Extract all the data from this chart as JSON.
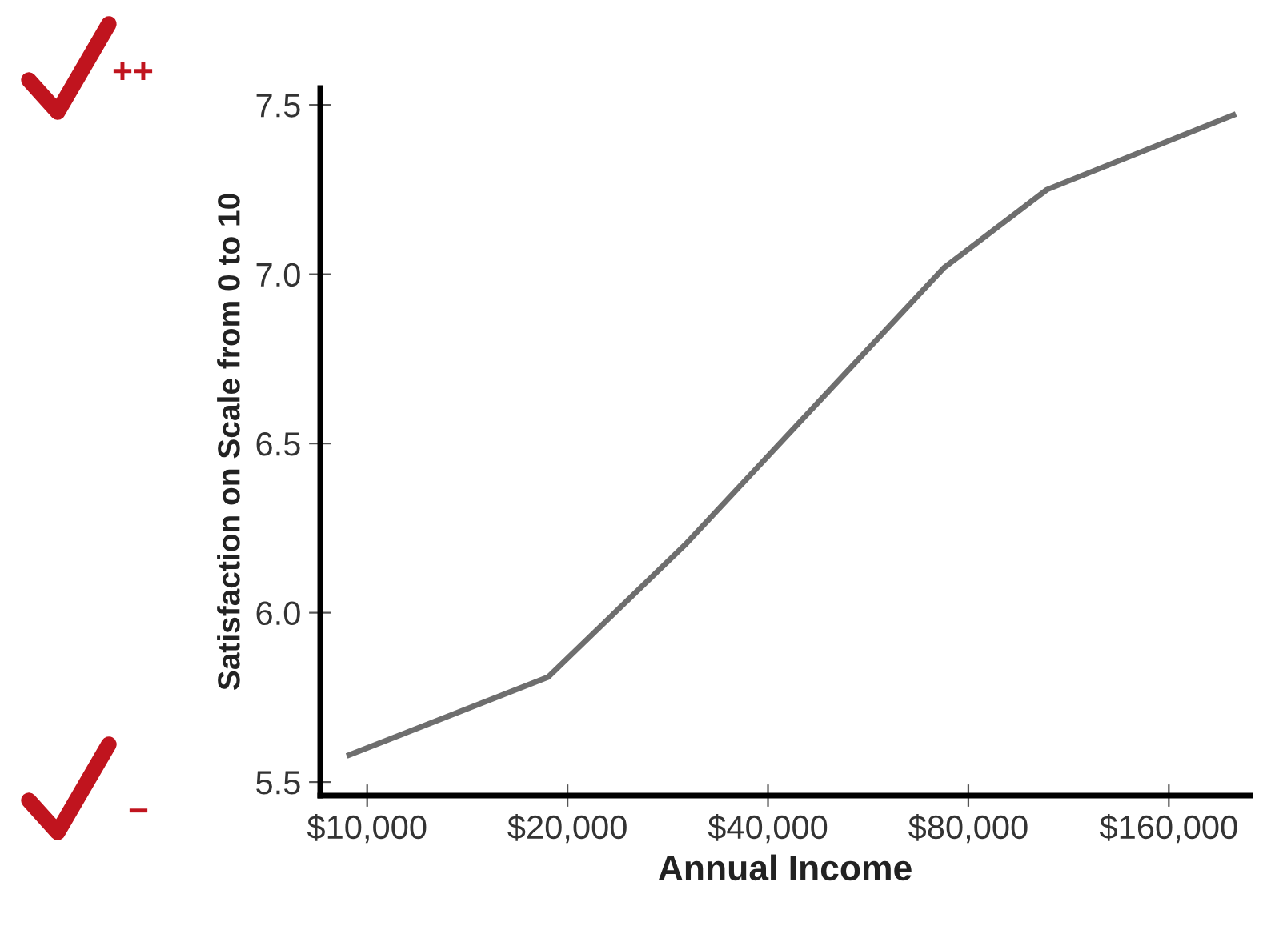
{
  "chart_data": {
    "type": "line",
    "xlabel": "Annual Income",
    "ylabel": "Satisfaction on Scale from 0 to 10",
    "log": "x",
    "color": "#6e6e6e",
    "grid": false,
    "marker": "none",
    "line_style": "solid",
    "x": [
      9400,
      18700,
      30000,
      73600,
      105000,
      200000
    ],
    "values": [
      5.58,
      5.81,
      6.2,
      7.02,
      7.25,
      7.47
    ],
    "xlim": [
      8500,
      212000
    ],
    "xticks": [
      {
        "value": 10000,
        "label": "$10,000"
      },
      {
        "value": 20000,
        "label": "$20,000"
      },
      {
        "value": 40000,
        "label": "$40,000"
      },
      {
        "value": 80000,
        "label": "$80,000"
      },
      {
        "value": 160000,
        "label": "$160,000"
      }
    ],
    "ylim": [
      5.46,
      7.55
    ],
    "yticks": [
      {
        "value": 5.5,
        "label": "5.5"
      },
      {
        "value": 6.0,
        "label": "6.0"
      },
      {
        "value": 6.5,
        "label": "6.5"
      },
      {
        "value": 7.0,
        "label": "7.0"
      },
      {
        "value": 7.5,
        "label": "7.5"
      }
    ],
    "annotations": [
      "++",
      "−"
    ]
  }
}
